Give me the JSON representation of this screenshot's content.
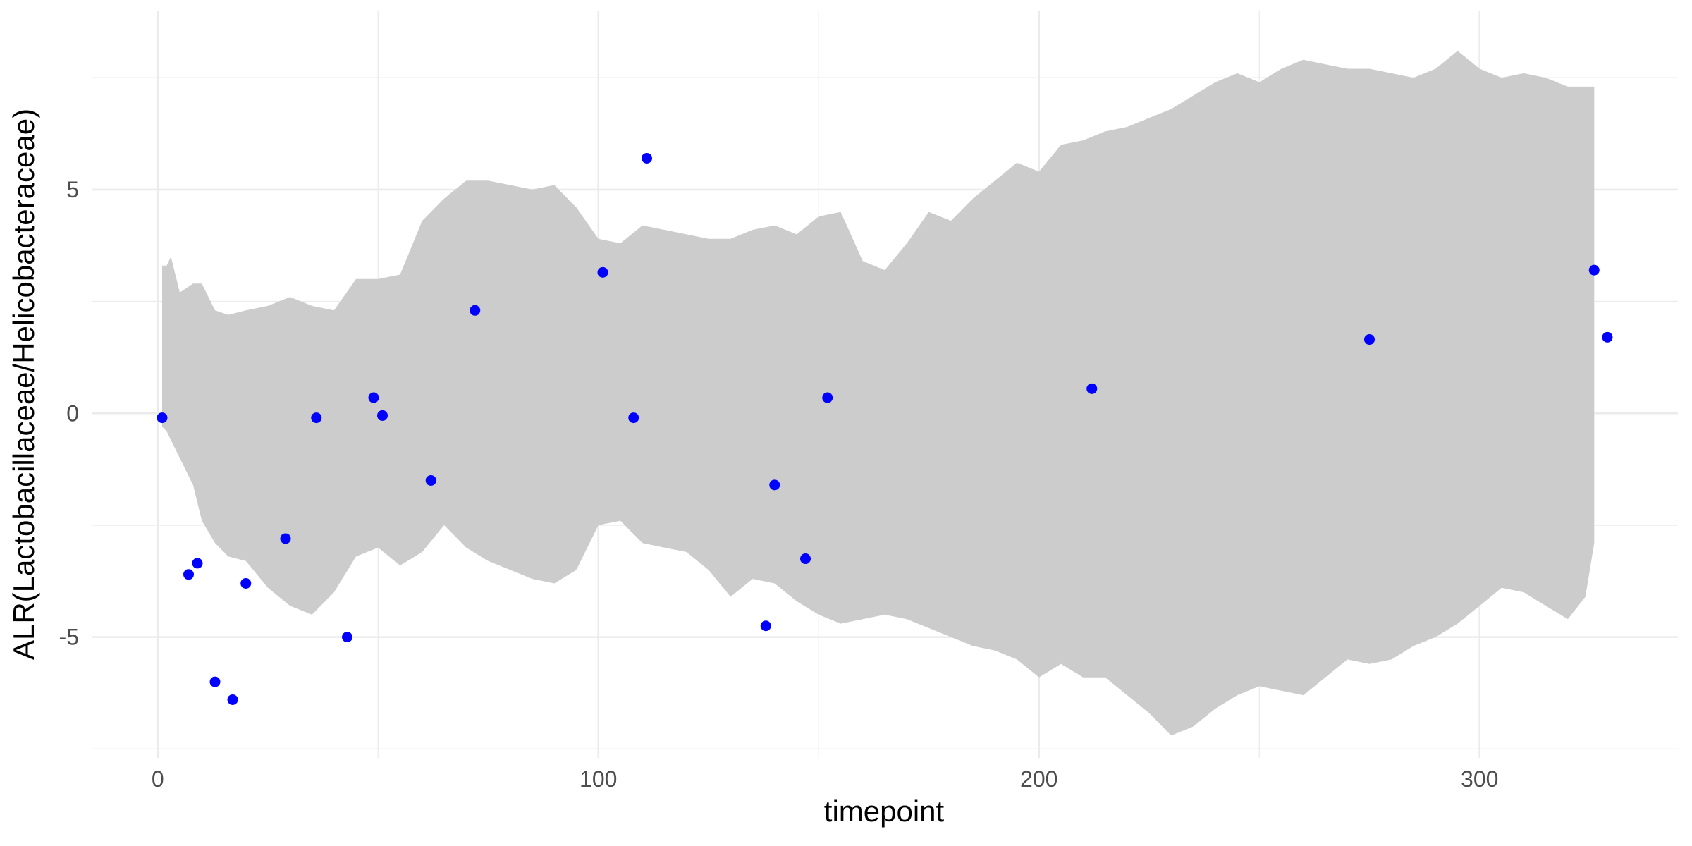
{
  "chart_data": {
    "type": "scatter",
    "title": "",
    "xlabel": "timepoint",
    "ylabel": "ALR(Lactobacillaceae/Helicobacteraceae)",
    "xlim": [
      -15,
      345
    ],
    "ylim": [
      -7.7,
      9.0
    ],
    "x_ticks": [
      0,
      100,
      200,
      300
    ],
    "x_tick_labels": [
      "0",
      "100",
      "200",
      "300"
    ],
    "y_ticks": [
      -5,
      0,
      5
    ],
    "y_tick_labels": [
      "-5",
      "0",
      "5"
    ],
    "grid": true,
    "colors": {
      "points": "#0000ff",
      "band": "#cccccc",
      "grid": "#ebebeb",
      "text": "#4d4d4d"
    },
    "series": [
      {
        "type": "scatter",
        "x": [
          1,
          7,
          9,
          13,
          17,
          20,
          29,
          36,
          43,
          49,
          51,
          62,
          72,
          101,
          108,
          111,
          138,
          140,
          147,
          152,
          212,
          275,
          326,
          329
        ],
        "y": [
          -0.1,
          -3.6,
          -3.35,
          -6.0,
          -6.4,
          -3.8,
          -2.8,
          -0.1,
          -5.0,
          0.35,
          -0.05,
          -1.5,
          2.3,
          3.15,
          -0.1,
          5.7,
          -4.75,
          -1.6,
          -3.25,
          0.35,
          0.55,
          1.65,
          3.2,
          1.7
        ]
      },
      {
        "type": "area-band",
        "x": [
          1,
          2,
          3,
          5,
          8,
          10,
          13,
          16,
          20,
          25,
          30,
          35,
          40,
          45,
          50,
          55,
          60,
          65,
          70,
          75,
          80,
          85,
          90,
          95,
          100,
          105,
          110,
          115,
          120,
          125,
          130,
          135,
          140,
          145,
          150,
          155,
          160,
          165,
          170,
          175,
          180,
          185,
          190,
          195,
          200,
          205,
          210,
          215,
          220,
          225,
          230,
          235,
          240,
          245,
          250,
          255,
          260,
          265,
          270,
          275,
          280,
          285,
          290,
          295,
          300,
          305,
          310,
          315,
          320,
          324,
          326
        ],
        "upper": [
          3.3,
          3.3,
          3.5,
          2.7,
          2.9,
          2.9,
          2.3,
          2.2,
          2.3,
          2.4,
          2.6,
          2.4,
          2.3,
          3.0,
          3.0,
          3.1,
          4.3,
          4.8,
          5.2,
          5.2,
          5.1,
          5.0,
          5.1,
          4.6,
          3.9,
          3.8,
          4.2,
          4.1,
          4.0,
          3.9,
          3.9,
          4.1,
          4.2,
          4.0,
          4.4,
          4.5,
          3.4,
          3.2,
          3.8,
          4.5,
          4.3,
          4.8,
          5.2,
          5.6,
          5.4,
          6.0,
          6.1,
          6.3,
          6.4,
          6.6,
          6.8,
          7.1,
          7.4,
          7.6,
          7.4,
          7.7,
          7.9,
          7.8,
          7.7,
          7.7,
          7.6,
          7.5,
          7.7,
          8.1,
          7.7,
          7.5,
          7.6,
          7.5,
          7.3,
          7.3,
          7.3
        ],
        "lower": [
          -0.3,
          -0.4,
          -0.6,
          -1.0,
          -1.6,
          -2.4,
          -2.9,
          -3.2,
          -3.3,
          -3.9,
          -4.3,
          -4.5,
          -4.0,
          -3.2,
          -3.0,
          -3.4,
          -3.1,
          -2.5,
          -3.0,
          -3.3,
          -3.5,
          -3.7,
          -3.8,
          -3.5,
          -2.5,
          -2.4,
          -2.9,
          -3.0,
          -3.1,
          -3.5,
          -4.1,
          -3.7,
          -3.8,
          -4.2,
          -4.5,
          -4.7,
          -4.6,
          -4.5,
          -4.6,
          -4.8,
          -5.0,
          -5.2,
          -5.3,
          -5.5,
          -5.9,
          -5.6,
          -5.9,
          -5.9,
          -6.3,
          -6.7,
          -7.2,
          -7.0,
          -6.6,
          -6.3,
          -6.1,
          -6.2,
          -6.3,
          -5.9,
          -5.5,
          -5.6,
          -5.5,
          -5.2,
          -5.0,
          -4.7,
          -4.3,
          -3.9,
          -4.0,
          -4.3,
          -4.6,
          -4.1,
          -2.9
        ]
      }
    ]
  }
}
